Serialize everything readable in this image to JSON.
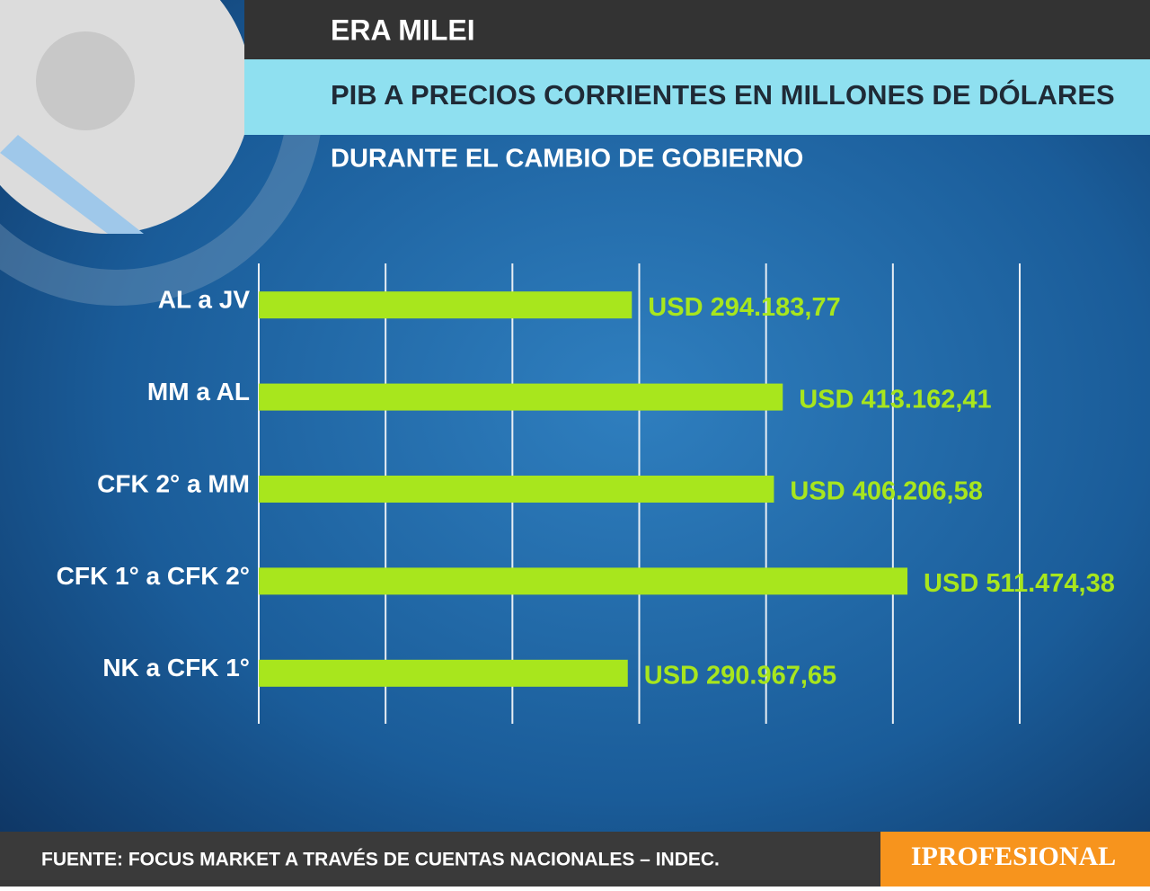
{
  "chart_data": {
    "type": "hbar",
    "header": "ERA MILEI",
    "title": "PIB A PRECIOS CORRIENTES EN MILLONES DE DÓLARES",
    "subtitle": "DURANTE EL CAMBIO DE GOBIERNO",
    "categories": [
      "AL a JV",
      "MM a AL",
      "CFK 2° a MM",
      "CFK 1° a CFK 2°",
      "NK a CFK 1°"
    ],
    "values": [
      294183.77,
      413162.41,
      406206.58,
      511474.38,
      290967.65
    ],
    "value_labels": [
      "USD 294.183,77",
      "USD 413.162,41",
      "USD 406.206,58",
      "USD 511.474,38",
      "USD 290.967,65"
    ],
    "color": "#a8e61d",
    "xlim": [
      0,
      600000
    ],
    "xticks": [
      0,
      100000,
      200000,
      300000,
      400000,
      500000,
      600000
    ],
    "grid": true,
    "source": "FUENTE: FOCUS MARKET A TRAVÉS DE CUENTAS NACIONALES – INDEC.",
    "brand": "IPROFESIONAL"
  }
}
